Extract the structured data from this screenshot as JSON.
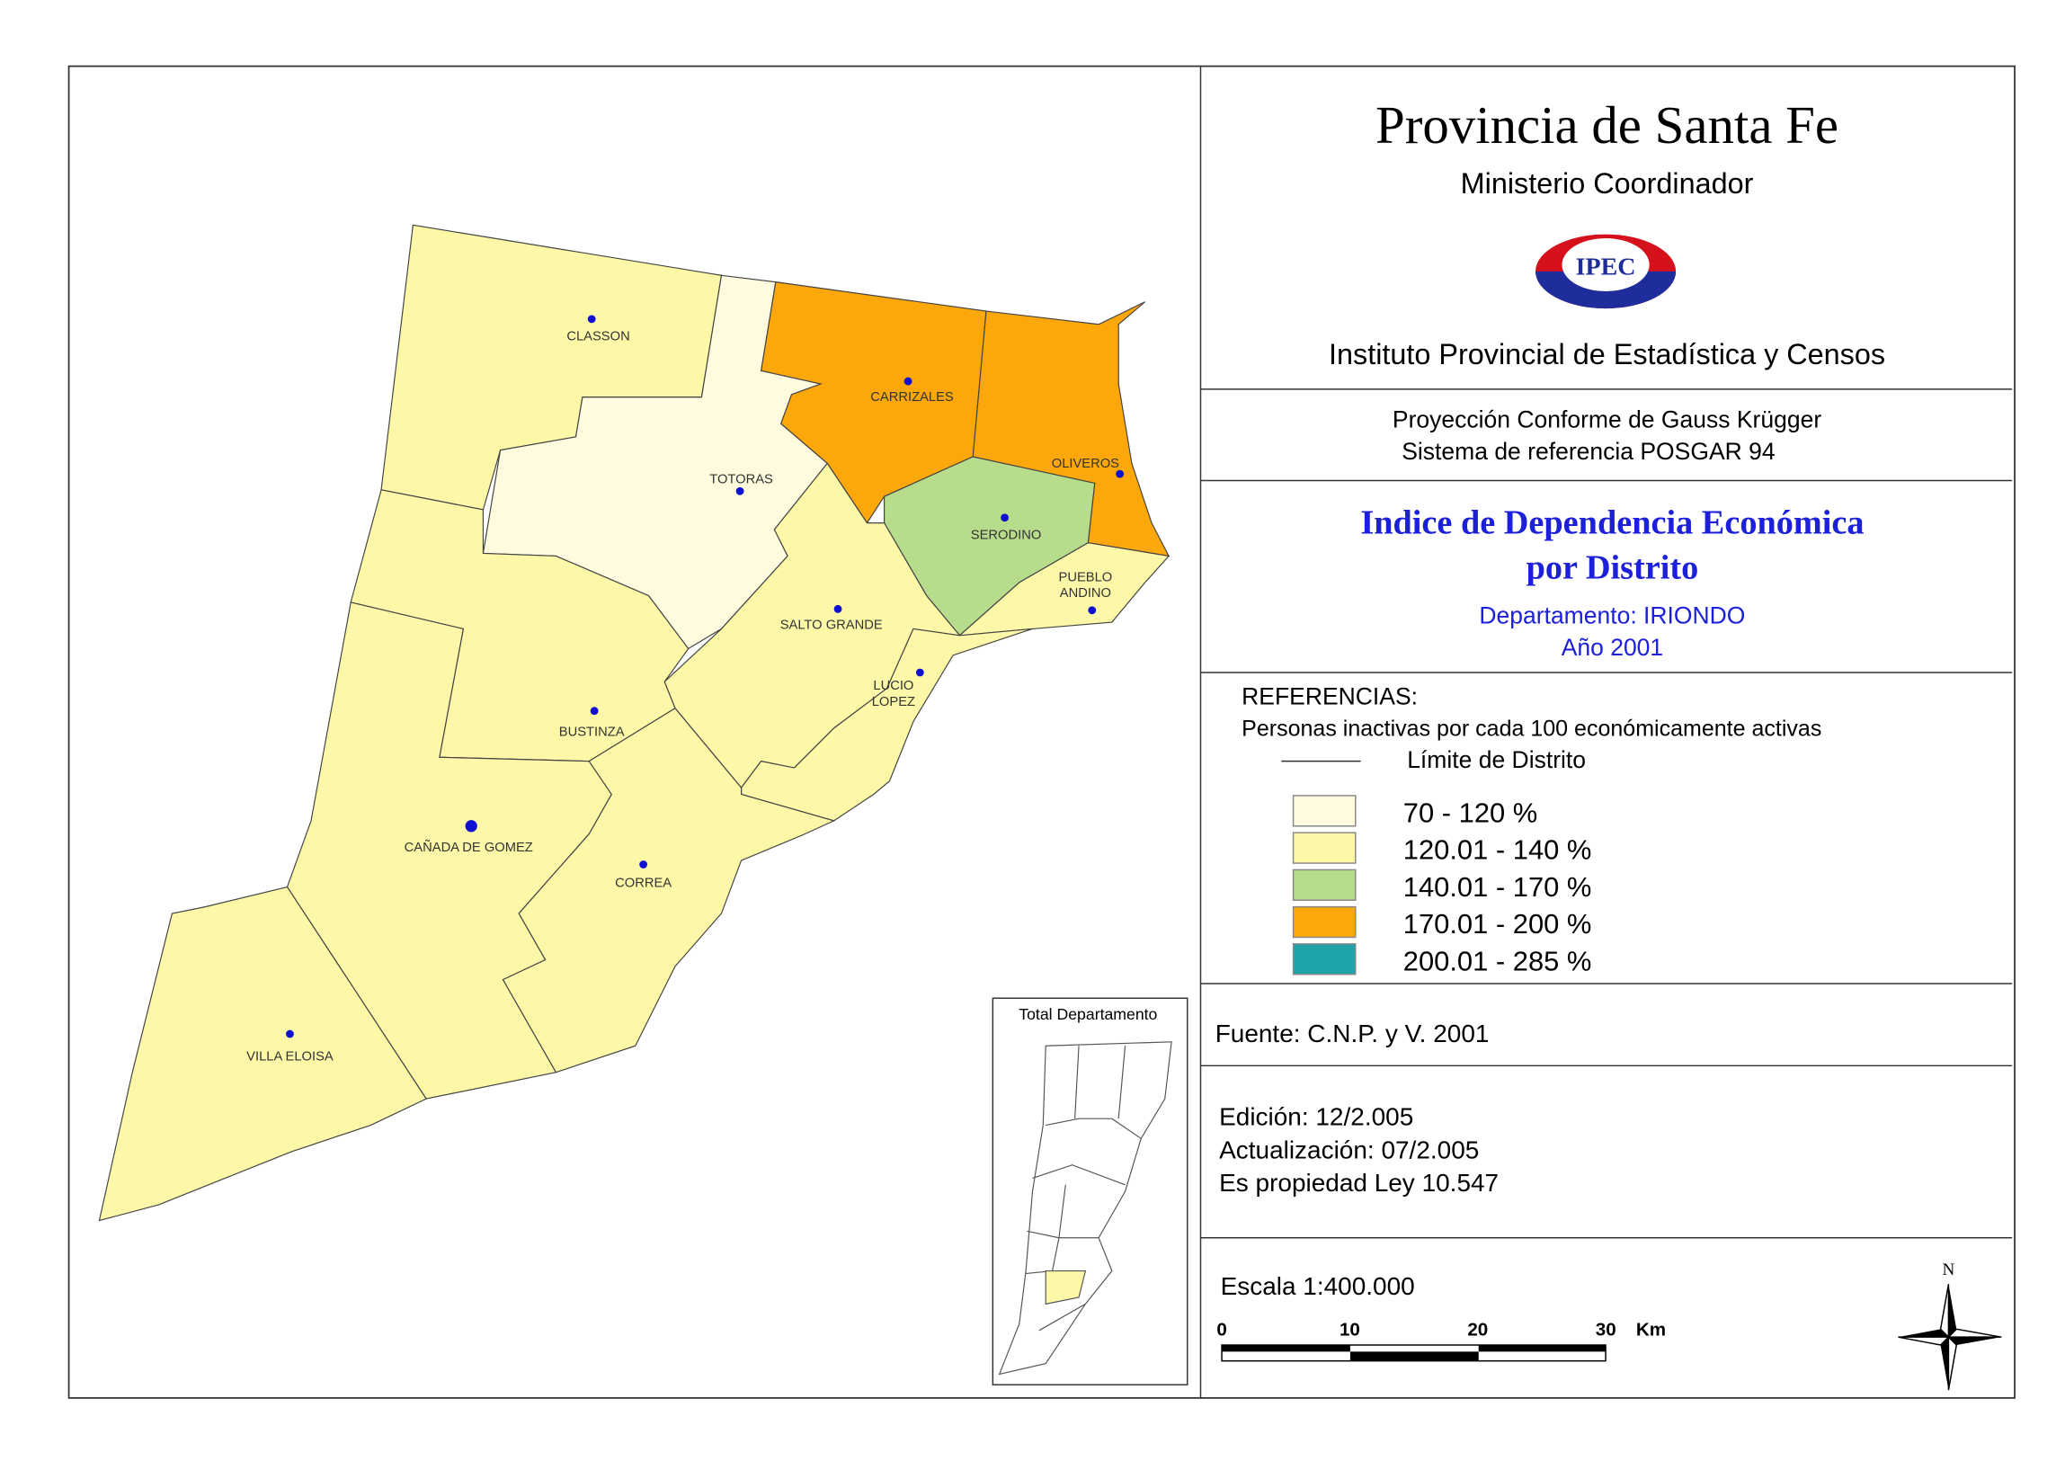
{
  "header": {
    "title": "Provincia de Santa Fe",
    "subtitle": "Ministerio Coordinador",
    "logo": "IPEC",
    "institute": "Instituto Provincial de Estadística y Censos"
  },
  "projection": [
    "Proyección Conforme de Gauss Krügger",
    "Sistema de referencia POSGAR 94"
  ],
  "map_title": {
    "lines": [
      "Indice de Dependencia Económica",
      "por Distrito"
    ],
    "department": "Departamento:  IRIONDO",
    "year": "Año 2001"
  },
  "legend": {
    "title": "REFERENCIAS:",
    "description": "Personas inactivas por cada 100 económicamente activas",
    "boundary": "Límite de  Distrito",
    "classes": [
      {
        "label": "70 - 120 %",
        "color": "#fefbdf"
      },
      {
        "label": "120.01 - 140 %",
        "color": "#fdf8a8"
      },
      {
        "label": "140.01 - 170 %",
        "color": "#b7dc8c"
      },
      {
        "label": "170.01 - 200 %",
        "color": "#fca70a"
      },
      {
        "label": "200.01 - 285 %",
        "color": "#1ea4a8"
      }
    ]
  },
  "districts": [
    {
      "label": [
        "CLASSON"
      ],
      "color": "#fdf8a8"
    },
    {
      "label": [
        "TOTORAS"
      ],
      "color": "#fefbdf"
    },
    {
      "label": [
        "CARRIZALES"
      ],
      "color": "#fca70a"
    },
    {
      "label": [
        "OLIVEROS"
      ],
      "color": "#fca70a"
    },
    {
      "label": [
        "SERODINO"
      ],
      "color": "#b7dc8c"
    },
    {
      "label": [
        "PUEBLO",
        "ANDINO"
      ],
      "color": "#fdf8a8"
    },
    {
      "label": [
        "SALTO GRANDE"
      ],
      "color": "#fdf8a8"
    },
    {
      "label": [
        "LUCIO",
        "LOPEZ"
      ],
      "color": "#fdf8a8"
    },
    {
      "label": [
        "BUSTINZA"
      ],
      "color": "#fdf8a8"
    },
    {
      "label": [
        "CAÑADA DE GOMEZ"
      ],
      "color": "#fdf8a8"
    },
    {
      "label": [
        "CORREA"
      ],
      "color": "#fdf8a8"
    },
    {
      "label": [
        "VILLA ELOISA"
      ],
      "color": "#fdf8a8"
    }
  ],
  "inset": {
    "title": "Total Departamento"
  },
  "source": "Fuente:  C.N.P. y V. 2001",
  "edition": [
    "Edición:  12/2.005",
    "Actualización:  07/2.005",
    "Es propiedad Ley 10.547"
  ],
  "scale": {
    "label": "Escala 1:400.000",
    "ticks": [
      "0",
      "10",
      "20",
      "30"
    ],
    "unit": "Km"
  },
  "north": "N"
}
